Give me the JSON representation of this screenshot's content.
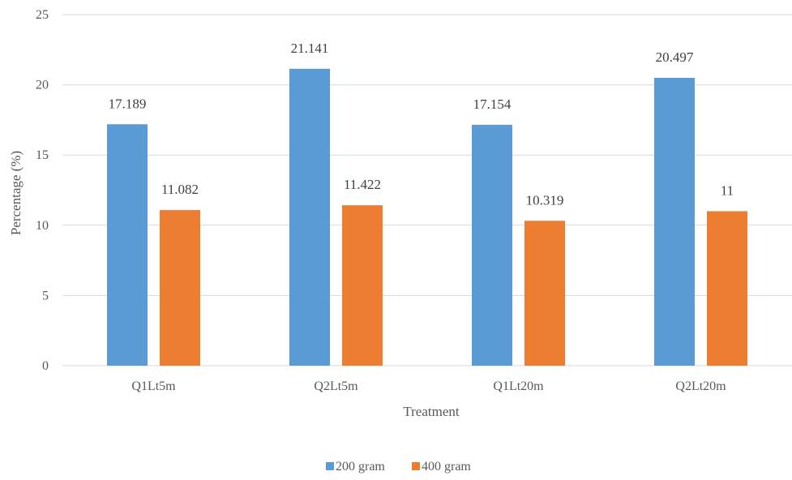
{
  "chart_data": {
    "type": "bar",
    "title": "",
    "xlabel": "Treatment",
    "ylabel": "Percentage (%)",
    "categories": [
      "Q1Lt5m",
      "Q2Lt5m",
      "Q1Lt20m",
      "Q2Lt20m"
    ],
    "series": [
      {
        "name": "200 gram",
        "values": [
          17.189,
          21.141,
          17.154,
          20.497
        ],
        "labels": [
          "17.189",
          "21.141",
          "17.154",
          "20.497"
        ],
        "color": "#5b9bd5"
      },
      {
        "name": "400 gram",
        "values": [
          11.082,
          11.422,
          10.319,
          11
        ],
        "labels": [
          "11.082",
          "11.422",
          "10.319",
          "11"
        ],
        "color": "#ed7d31"
      }
    ],
    "ylim": [
      0,
      25
    ],
    "yticks": [
      0,
      5,
      10,
      15,
      20,
      25
    ],
    "ytick_labels": [
      "0",
      "5",
      "10",
      "15",
      "20",
      "25"
    ],
    "grid": true,
    "legend_position": "bottom-center"
  }
}
